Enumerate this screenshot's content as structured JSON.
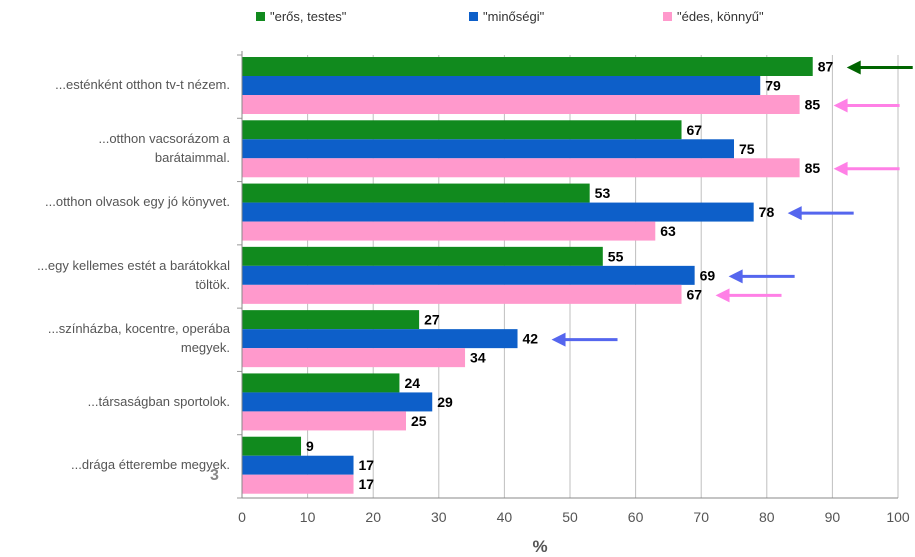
{
  "chart_data": {
    "type": "bar",
    "orientation": "horizontal",
    "categories": [
      "...esténként otthon tv-t nézem.",
      "...otthon vacsorázom a barátaimmal.",
      "...otthon olvasok egy jó könyvet.",
      "...egy kellemes estét a barátokkal  töltök.",
      "...színházba, kocentre, operába megyek.",
      "...társaságban sportolok.",
      "...drága étterembe megyek."
    ],
    "series": [
      {
        "name": "\"erős, testes\"",
        "color": "#118a1e",
        "values": [
          87,
          67,
          53,
          55,
          27,
          24,
          9
        ]
      },
      {
        "name": "\"minőségi\"",
        "color": "#0d5fc9",
        "values": [
          79,
          75,
          78,
          69,
          42,
          29,
          17
        ]
      },
      {
        "name": "\"édes, könnyű\"",
        "color": "#ff99cc",
        "values": [
          85,
          85,
          63,
          67,
          34,
          25,
          17
        ]
      }
    ],
    "xlabel": "%",
    "ylabel": "",
    "xlim": [
      0,
      100
    ],
    "xticks": [
      0,
      10,
      20,
      30,
      40,
      50,
      60,
      70,
      80,
      90,
      100
    ],
    "grid": true,
    "legend_position": "top",
    "stray_label": "3",
    "arrows": [
      {
        "category": 0,
        "series": 0,
        "color": "#006400"
      },
      {
        "category": 0,
        "series": 2,
        "color": "#ff80e6"
      },
      {
        "category": 1,
        "series": 2,
        "color": "#ff80e6"
      },
      {
        "category": 2,
        "series": 1,
        "color": "#5566ee"
      },
      {
        "category": 3,
        "series": 1,
        "color": "#5566ee"
      },
      {
        "category": 3,
        "series": 2,
        "color": "#ff80e6"
      },
      {
        "category": 4,
        "series": 1,
        "color": "#5566ee"
      }
    ]
  }
}
